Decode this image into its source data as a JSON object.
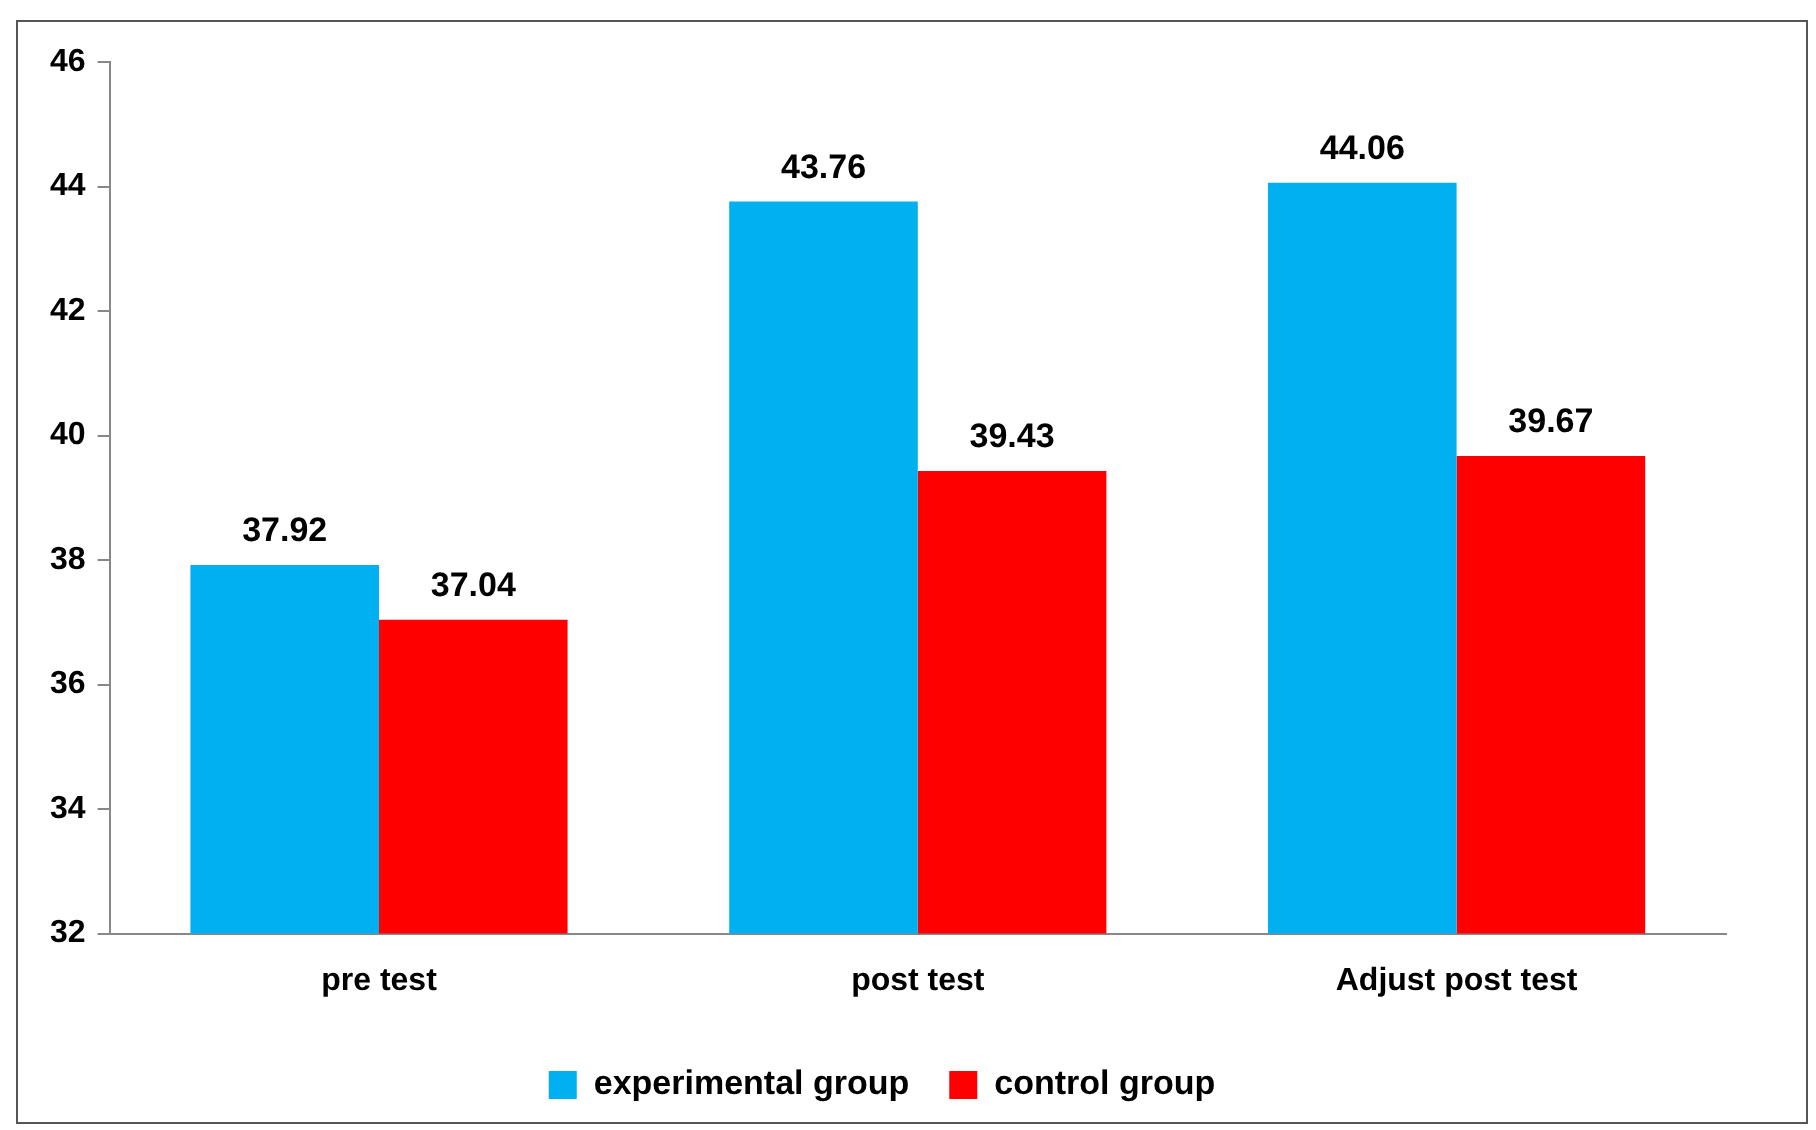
{
  "chart_data": {
    "type": "bar",
    "categories": [
      "pre test",
      "post test",
      "Adjust post test"
    ],
    "series": [
      {
        "name": "experimental group",
        "color": "#00b0f0",
        "values": [
          37.92,
          43.76,
          44.06
        ]
      },
      {
        "name": "control group",
        "color": "#ff0000",
        "values": [
          37.04,
          39.43,
          39.67
        ]
      }
    ],
    "ylim": [
      32,
      46
    ],
    "yticks": [
      32,
      34,
      36,
      38,
      40,
      42,
      44,
      46
    ],
    "grid": false,
    "legend": "bottom",
    "data_labels": true
  }
}
